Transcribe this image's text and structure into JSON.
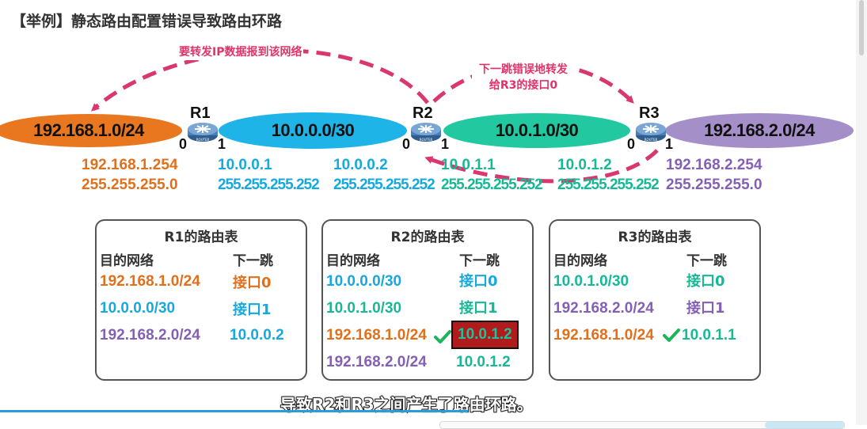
{
  "title": "【举例】静态路由配置错误导致路由环路",
  "networks": {
    "net1": "192.168.1.0/24",
    "net2": "10.0.0.0/30",
    "net3": "10.0.1.0/30",
    "net4": "192.168.2.0/24"
  },
  "routers": {
    "r1": "R1",
    "r2": "R2",
    "r3": "R3",
    "icon_text": "ROUTER"
  },
  "interfaces": {
    "r1_if0": "0",
    "r1_if1": "1",
    "r2_if0": "0",
    "r2_if1": "1",
    "r3_if0": "0",
    "r3_if1": "1"
  },
  "addresses": {
    "r1_if0_ip": "192.168.1.254",
    "r1_if0_mask": "255.255.255.0",
    "r1_if1_ip": "10.0.0.1",
    "r1_if1_mask": "255.255.255.252",
    "r2_if0_ip": "10.0.0.2",
    "r2_if0_mask": "255.255.255.252",
    "r2_if1_ip": "10.0.1.1",
    "r2_if1_mask": "255.255.255.252",
    "r3_if0_ip": "10.0.1.2",
    "r3_if0_mask": "255.255.255.252",
    "r3_if1_ip": "192.168.2.254",
    "r3_if1_mask": "255.255.255.0"
  },
  "annotations": {
    "forward_text": "要转发IP数据报到该网络",
    "wrong_hop_line1": "下一跳错误地转发",
    "wrong_hop_line2": "给R3的接口0"
  },
  "routing_tables": {
    "r1": {
      "title": "R1的路由表",
      "col_dest": "目的网络",
      "col_next": "下一跳",
      "rows": [
        {
          "dest": "192.168.1.0/24",
          "next": "接口0"
        },
        {
          "dest": "10.0.0.0/30",
          "next": "接口1"
        },
        {
          "dest": "192.168.2.0/24",
          "next": "10.0.0.2"
        }
      ]
    },
    "r2": {
      "title": "R2的路由表",
      "col_dest": "目的网络",
      "col_next": "下一跳",
      "rows": [
        {
          "dest": "10.0.0.0/30",
          "next": "接口0"
        },
        {
          "dest": "10.0.1.0/30",
          "next": "接口1"
        },
        {
          "dest": "192.168.1.0/24",
          "next": "10.0.1.2"
        },
        {
          "dest": "192.168.2.0/24",
          "next": "10.0.1.2"
        }
      ]
    },
    "r3": {
      "title": "R3的路由表",
      "col_dest": "目的网络",
      "col_next": "下一跳",
      "rows": [
        {
          "dest": "10.0.1.0/30",
          "next": "接口0"
        },
        {
          "dest": "192.168.2.0/24",
          "next": "接口1"
        },
        {
          "dest": "192.168.1.0/24",
          "next": "10.0.1.1"
        }
      ]
    }
  },
  "subtitle": "导致R2和R3之间产生了路由环路。",
  "colors": {
    "orange": "#e8771f",
    "blue": "#1fb4e8",
    "teal": "#22c9a0",
    "purple": "#a48fc8",
    "arrow": "#d9376e",
    "error_bg": "#b01c1c"
  },
  "progress_fraction": 0.54
}
